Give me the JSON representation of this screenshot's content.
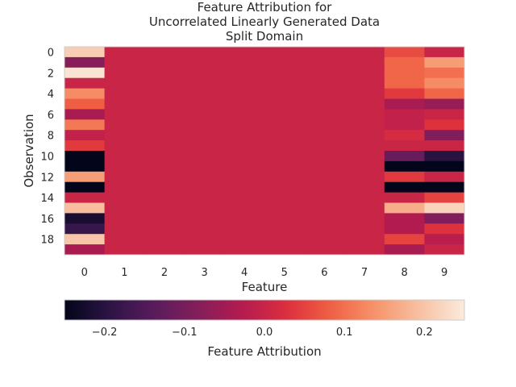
{
  "chart_data": {
    "type": "heatmap",
    "title_lines": [
      "Feature Attribution for",
      "Uncorrelated Linearly Generated Data",
      "Split Domain"
    ],
    "xlabel": "Feature",
    "ylabel": "Observation",
    "x_ticks": [
      "0",
      "1",
      "2",
      "3",
      "4",
      "5",
      "6",
      "7",
      "8",
      "9"
    ],
    "y_ticks": [
      "0",
      "2",
      "4",
      "6",
      "8",
      "10",
      "12",
      "14",
      "16",
      "18"
    ],
    "y_tick_rows": [
      0,
      2,
      4,
      6,
      8,
      10,
      12,
      14,
      16,
      18
    ],
    "colorbar": {
      "label": "Feature Attribution",
      "vmin": -0.25,
      "vmax": 0.25,
      "ticks": [
        -0.2,
        -0.1,
        0.0,
        0.1,
        0.2
      ],
      "tick_labels": [
        "−0.2",
        "−0.1",
        "0.0",
        "0.1",
        "0.2"
      ]
    },
    "colormap_stops": [
      "#03051a",
      "#2b1444",
      "#581c5d",
      "#841e5a",
      "#b41b50",
      "#dc2f3e",
      "#f06043",
      "#f6946b",
      "#f7c1a2",
      "#faebdd"
    ],
    "values": [
      [
        0.21,
        0.0,
        0.0,
        0.0,
        0.0,
        0.0,
        0.0,
        0.0,
        0.06,
        0.0
      ],
      [
        -0.08,
        0.0,
        0.0,
        0.0,
        0.0,
        0.0,
        0.0,
        0.0,
        0.09,
        0.15
      ],
      [
        0.24,
        0.0,
        0.0,
        0.0,
        0.0,
        0.0,
        0.0,
        0.0,
        0.09,
        0.1
      ],
      [
        0.0,
        0.0,
        0.0,
        0.0,
        0.0,
        0.0,
        0.0,
        0.0,
        0.09,
        0.13
      ],
      [
        0.13,
        0.0,
        0.0,
        0.0,
        0.0,
        0.0,
        0.0,
        0.0,
        0.04,
        0.09
      ],
      [
        0.08,
        0.0,
        0.0,
        0.0,
        0.0,
        0.0,
        0.0,
        0.0,
        -0.04,
        -0.06
      ],
      [
        -0.04,
        0.0,
        0.0,
        0.0,
        0.0,
        0.0,
        0.0,
        0.0,
        -0.01,
        0.0
      ],
      [
        0.11,
        0.0,
        0.0,
        0.0,
        0.0,
        0.0,
        0.0,
        0.0,
        -0.01,
        0.03
      ],
      [
        -0.01,
        0.0,
        0.0,
        0.0,
        0.0,
        0.0,
        0.0,
        0.0,
        0.02,
        -0.09
      ],
      [
        0.04,
        0.0,
        0.0,
        0.0,
        0.0,
        0.0,
        0.0,
        0.0,
        0.0,
        0.0
      ],
      [
        -0.25,
        0.0,
        0.0,
        0.0,
        0.0,
        0.0,
        0.0,
        0.0,
        -0.12,
        -0.2
      ],
      [
        -0.25,
        0.0,
        0.0,
        0.0,
        0.0,
        0.0,
        0.0,
        0.0,
        -0.25,
        -0.25
      ],
      [
        0.15,
        0.0,
        0.0,
        0.0,
        0.0,
        0.0,
        0.0,
        0.0,
        0.04,
        0.0
      ],
      [
        -0.25,
        0.0,
        0.0,
        0.0,
        0.0,
        0.0,
        0.0,
        0.0,
        -0.25,
        -0.25
      ],
      [
        0.0,
        0.0,
        0.0,
        0.0,
        0.0,
        0.0,
        0.0,
        0.0,
        0.0,
        0.05
      ],
      [
        0.19,
        0.0,
        0.0,
        0.0,
        0.0,
        0.0,
        0.0,
        0.0,
        0.17,
        0.22
      ],
      [
        -0.22,
        0.0,
        0.0,
        0.0,
        0.0,
        0.0,
        0.0,
        0.0,
        -0.03,
        -0.09
      ],
      [
        -0.18,
        0.0,
        0.0,
        0.0,
        0.0,
        0.0,
        0.0,
        0.0,
        -0.03,
        0.03
      ],
      [
        0.2,
        0.0,
        0.0,
        0.0,
        0.0,
        0.0,
        0.0,
        0.0,
        0.05,
        -0.02
      ],
      [
        -0.04,
        0.0,
        0.0,
        0.0,
        0.0,
        0.0,
        0.0,
        0.0,
        -0.04,
        0.0
      ]
    ]
  }
}
